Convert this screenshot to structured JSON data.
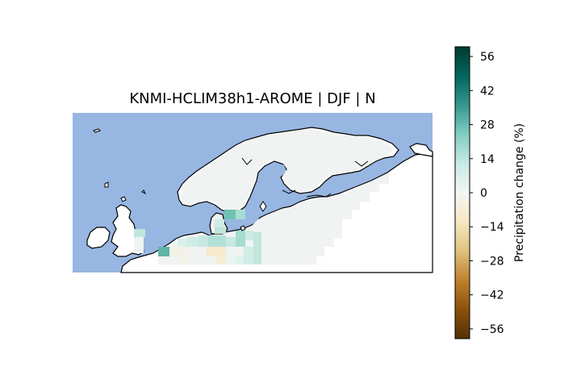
{
  "title": "KNMI-HCLIM38h1-AROME | DJF | N",
  "colorbar": {
    "label": "Precipitation change (%)",
    "ticks": [
      "56",
      "42",
      "28",
      "14",
      "0",
      "−14",
      "−28",
      "−42",
      "−56"
    ],
    "tick_values": [
      56,
      42,
      28,
      14,
      0,
      -14,
      -28,
      -42,
      -56
    ],
    "range": [
      -60,
      60
    ],
    "colormap": "BrBG"
  },
  "colors": {
    "ocean": "#97b6e1",
    "land_outside": "#ffffff",
    "domain_base": "#f0f3f2",
    "coast": "#000000"
  }
}
